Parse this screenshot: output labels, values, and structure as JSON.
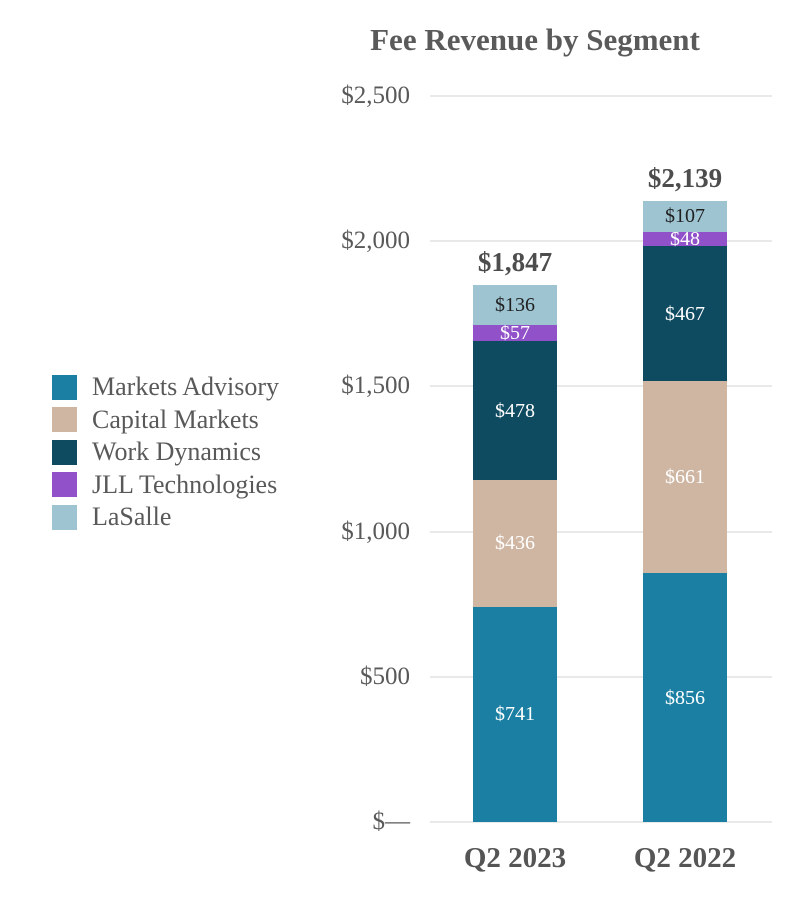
{
  "title": "Fee Revenue by Segment",
  "colors": {
    "background": "#ffffff",
    "title_text": "#5a5a5a",
    "axis_text": "#595959",
    "category_text": "#555555",
    "total_text": "#4d4d4d",
    "gridline": "#e9e9e9",
    "markets_advisory": "#1a7fa3",
    "capital_markets": "#cfb6a3",
    "work_dynamics": "#0e4a60",
    "jll_technologies": "#9051c9",
    "lasalle": "#9ec4d2"
  },
  "chart_data": {
    "type": "bar",
    "stacked": true,
    "orientation": "vertical",
    "title": "Fee Revenue by Segment",
    "categories": [
      "Q2 2023",
      "Q2 2022"
    ],
    "series": [
      {
        "name": "Markets Advisory",
        "color": "#1a7fa3",
        "values": [
          741,
          856
        ],
        "labels": [
          "$741",
          "$856"
        ],
        "label_color": "#ffffff"
      },
      {
        "name": "Capital Markets",
        "color": "#cfb6a3",
        "values": [
          436,
          661
        ],
        "labels": [
          "$436",
          "$661"
        ],
        "label_color": "#ffffff"
      },
      {
        "name": "Work Dynamics",
        "color": "#0e4a60",
        "values": [
          478,
          467
        ],
        "labels": [
          "$478",
          "$467"
        ],
        "label_color": "#ffffff"
      },
      {
        "name": "JLL Technologies",
        "color": "#9051c9",
        "values": [
          57,
          48
        ],
        "labels": [
          "$57",
          "$48"
        ],
        "label_color": "#ffffff"
      },
      {
        "name": "LaSalle",
        "color": "#9ec4d2",
        "values": [
          136,
          107
        ],
        "labels": [
          "$136",
          "$107"
        ],
        "label_color": "#1f1f1f"
      }
    ],
    "totals": [
      {
        "value": 1847,
        "label": "$1,847"
      },
      {
        "value": 2139,
        "label": "$2,139"
      }
    ],
    "y_axis": {
      "min": 0,
      "max": 2500,
      "ticks": [
        {
          "value": 2500,
          "label": "$2,500"
        },
        {
          "value": 2000,
          "label": "$2,000"
        },
        {
          "value": 1500,
          "label": "$1,500"
        },
        {
          "value": 1000,
          "label": "$1,000"
        },
        {
          "value": 500,
          "label": "$500"
        },
        {
          "value": 0,
          "label": "$—"
        }
      ]
    },
    "legend_position": "left",
    "grid": true
  }
}
